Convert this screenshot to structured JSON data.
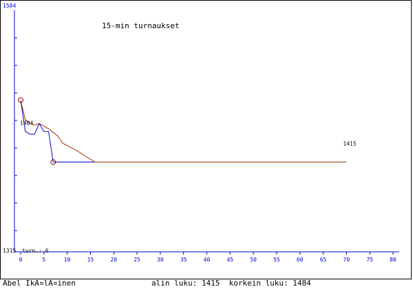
{
  "chart_data": {
    "type": "line",
    "title": "15-min turnaukset",
    "ylim": [
      1315,
      1584
    ],
    "xlim": [
      0,
      80
    ],
    "x_ticks": [
      0,
      5,
      10,
      15,
      20,
      25,
      30,
      35,
      40,
      45,
      50,
      55,
      60,
      65,
      70,
      75,
      80
    ],
    "y_top_label": "1584",
    "y_bottom_label": "1315",
    "turn_label": "turn.: 6",
    "series": [
      {
        "color": "#0000cc",
        "points": [
          [
            0,
            1484
          ],
          [
            1,
            1449
          ],
          [
            2,
            1446
          ],
          [
            3,
            1446
          ],
          [
            4,
            1458
          ],
          [
            5,
            1449
          ],
          [
            6,
            1449
          ],
          [
            7,
            1415
          ],
          [
            16,
            1415
          ]
        ]
      },
      {
        "color": "#993300",
        "points": [
          [
            0,
            1484
          ],
          [
            1,
            1462
          ],
          [
            2,
            1458
          ],
          [
            3,
            1456
          ],
          [
            4,
            1458
          ],
          [
            6,
            1452
          ],
          [
            8,
            1444
          ],
          [
            9,
            1436
          ],
          [
            12,
            1428
          ],
          [
            15,
            1418
          ],
          [
            16,
            1415
          ],
          [
            70,
            1415
          ]
        ]
      }
    ],
    "markers": [
      [
        0,
        1484
      ],
      [
        7,
        1415
      ]
    ],
    "annotations": [
      {
        "x": 0,
        "y": 1484,
        "text": "1484"
      },
      {
        "x": 70,
        "y": 1415,
        "text": "1415"
      }
    ],
    "grid": false,
    "colors": {
      "axis": "#0000cc",
      "text": "#000000",
      "marker": "#990000"
    }
  },
  "footer": {
    "player": "Abel IkÃ¤lÃ¤inen",
    "min_max": "alin luku: 1415  korkein luku: 1484"
  }
}
